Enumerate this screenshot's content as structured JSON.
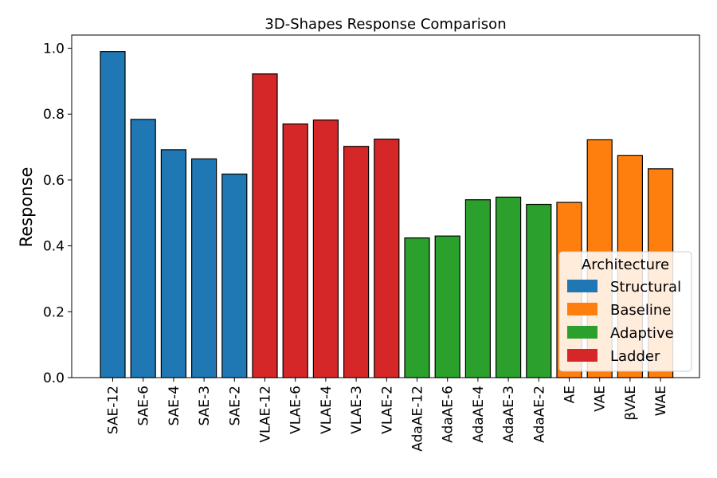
{
  "chart_data": {
    "type": "bar",
    "title": "3D-Shapes Response Comparison",
    "ylabel": "Response",
    "xlabel": "",
    "ylim": [
      0,
      1.04
    ],
    "yticks": [
      "0.0",
      "0.2",
      "0.4",
      "0.6",
      "0.8",
      "1.0"
    ],
    "grid": false,
    "legend": {
      "title": "Architecture",
      "placement": "lower-right",
      "entries": [
        {
          "label": "Structural",
          "color": "#1f77b4"
        },
        {
          "label": "Baseline",
          "color": "#ff7f0e"
        },
        {
          "label": "Adaptive",
          "color": "#2ca02c"
        },
        {
          "label": "Ladder",
          "color": "#d62728"
        }
      ]
    },
    "categories": [
      "SAE-12",
      "SAE-6",
      "SAE-4",
      "SAE-3",
      "SAE-2",
      "VLAE-12",
      "VLAE-6",
      "VLAE-4",
      "VLAE-3",
      "VLAE-2",
      "AdaAE-12",
      "AdaAE-6",
      "AdaAE-4",
      "AdaAE-3",
      "AdaAE-2",
      "AE",
      "VAE",
      "βVAE",
      "WAE"
    ],
    "values": [
      0.99,
      0.784,
      0.692,
      0.664,
      0.618,
      0.922,
      0.77,
      0.782,
      0.702,
      0.724,
      0.424,
      0.43,
      0.54,
      0.548,
      0.526,
      0.532,
      0.722,
      0.674,
      0.634
    ],
    "groups": [
      "Structural",
      "Structural",
      "Structural",
      "Structural",
      "Structural",
      "Ladder",
      "Ladder",
      "Ladder",
      "Ladder",
      "Ladder",
      "Adaptive",
      "Adaptive",
      "Adaptive",
      "Adaptive",
      "Adaptive",
      "Baseline",
      "Baseline",
      "Baseline",
      "Baseline"
    ]
  }
}
